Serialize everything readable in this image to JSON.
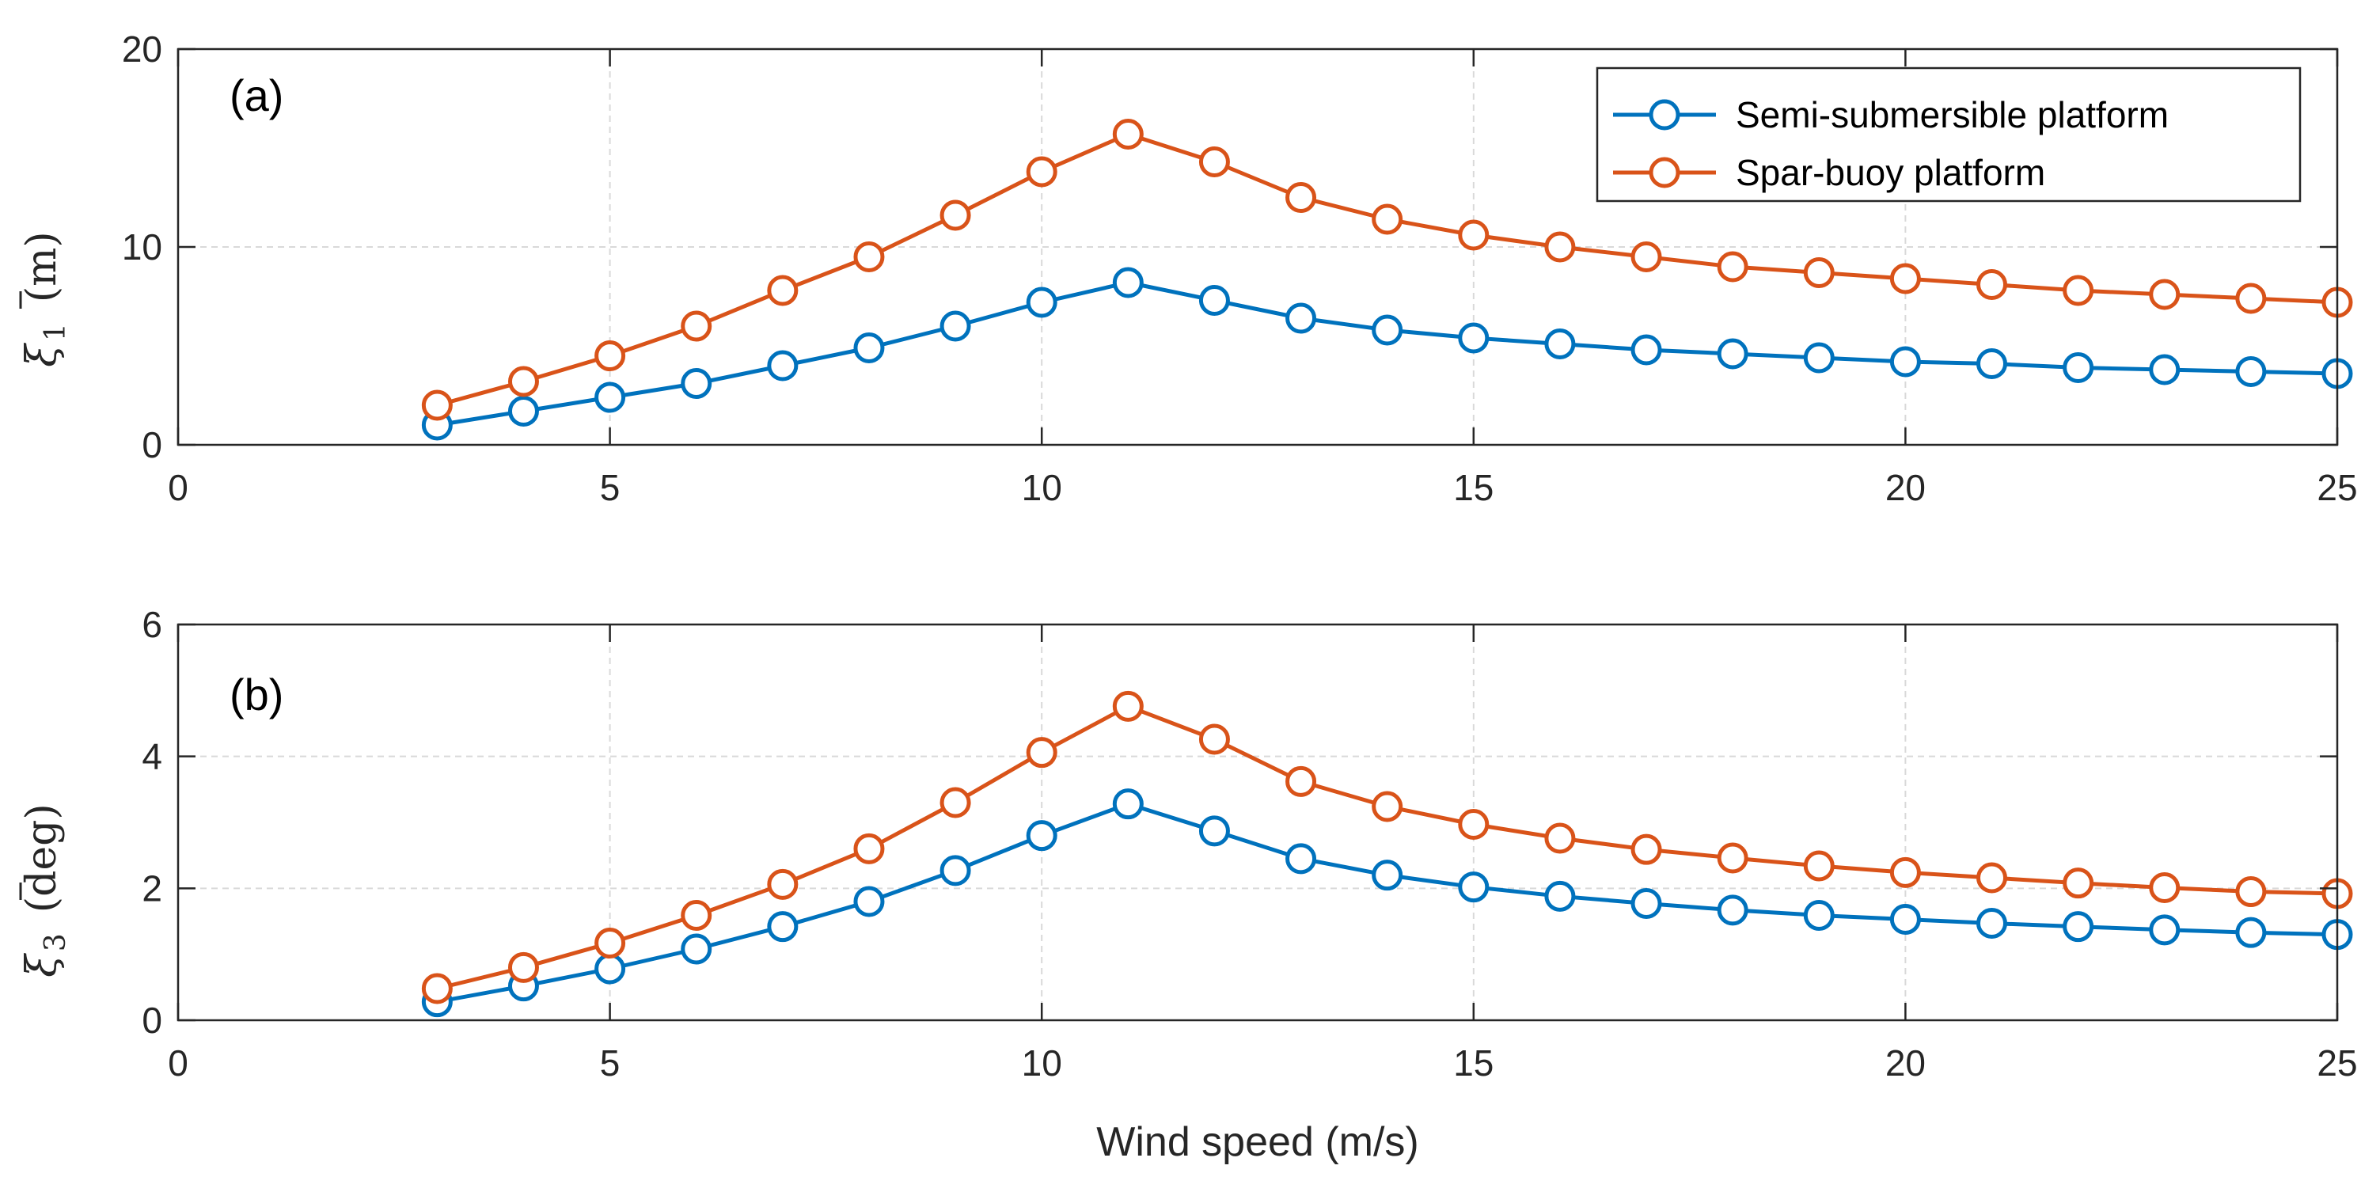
{
  "chart_data": [
    {
      "type": "line",
      "panel_label": "(a)",
      "ylabel_symbol": "ξ",
      "ylabel_subscript": "1",
      "ylabel_unit": "(m)",
      "xlabel": "",
      "xlim": [
        0,
        25
      ],
      "ylim": [
        0,
        20
      ],
      "xticks": [
        "0",
        "5",
        "10",
        "15",
        "20",
        "25"
      ],
      "yticks": [
        "0",
        "10",
        "20"
      ],
      "grid": true,
      "legend_position": "top-right",
      "x": [
        3,
        4,
        5,
        6,
        7,
        8,
        9,
        10,
        11,
        12,
        13,
        14,
        15,
        16,
        17,
        18,
        19,
        20,
        21,
        22,
        23,
        24,
        25
      ],
      "series": [
        {
          "name": "Semi-submersible platform",
          "color": "#0072BD",
          "values": [
            1.0,
            1.7,
            2.4,
            3.1,
            4.0,
            4.9,
            6.0,
            7.2,
            8.2,
            7.3,
            6.4,
            5.8,
            5.4,
            5.1,
            4.8,
            4.6,
            4.4,
            4.2,
            4.1,
            3.9,
            3.8,
            3.7,
            3.6
          ]
        },
        {
          "name": "Spar-buoy platform",
          "color": "#D95319",
          "values": [
            2.0,
            3.2,
            4.5,
            6.0,
            7.8,
            9.5,
            11.6,
            13.8,
            15.7,
            14.3,
            12.5,
            11.4,
            10.6,
            10.0,
            9.5,
            9.0,
            8.7,
            8.4,
            8.1,
            7.8,
            7.6,
            7.4,
            7.2
          ]
        }
      ]
    },
    {
      "type": "line",
      "panel_label": "(b)",
      "ylabel_symbol": "ξ",
      "ylabel_subscript": "3",
      "ylabel_unit": "(deg)",
      "xlabel": "Wind speed (m/s)",
      "xlim": [
        0,
        25
      ],
      "ylim": [
        0,
        6
      ],
      "xticks": [
        "0",
        "5",
        "10",
        "15",
        "20",
        "25"
      ],
      "yticks": [
        "0",
        "2",
        "4",
        "6"
      ],
      "grid": true,
      "x": [
        3,
        4,
        5,
        6,
        7,
        8,
        9,
        10,
        11,
        12,
        13,
        14,
        15,
        16,
        17,
        18,
        19,
        20,
        21,
        22,
        23,
        24,
        25
      ],
      "series": [
        {
          "name": "Semi-submersible platform",
          "color": "#0072BD",
          "values": [
            0.28,
            0.52,
            0.78,
            1.08,
            1.42,
            1.8,
            2.27,
            2.8,
            3.28,
            2.87,
            2.45,
            2.2,
            2.02,
            1.88,
            1.77,
            1.67,
            1.59,
            1.53,
            1.47,
            1.42,
            1.37,
            1.33,
            1.3
          ]
        },
        {
          "name": "Spar-buoy platform",
          "color": "#D95319",
          "values": [
            0.48,
            0.8,
            1.17,
            1.59,
            2.06,
            2.6,
            3.3,
            4.06,
            4.76,
            4.26,
            3.62,
            3.24,
            2.97,
            2.76,
            2.59,
            2.46,
            2.34,
            2.24,
            2.16,
            2.08,
            2.01,
            1.95,
            1.92
          ]
        }
      ]
    }
  ]
}
